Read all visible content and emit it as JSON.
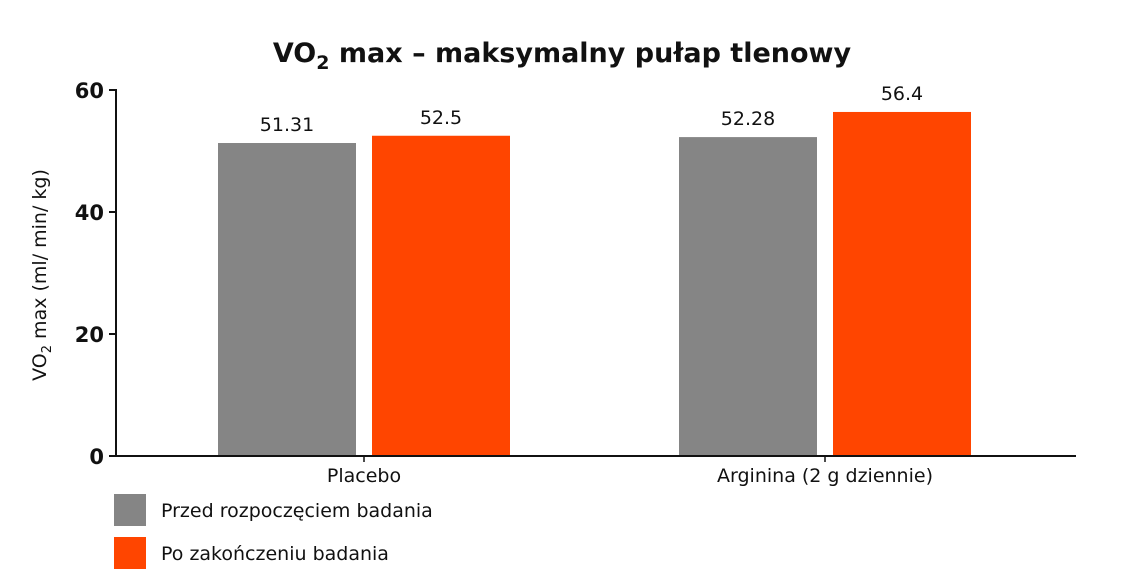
{
  "chart_data": {
    "type": "bar",
    "title_main": "VO",
    "title_sub": "2",
    "title_rest": " max – maksymalny pułap tlenowy",
    "ylabel_main": "VO",
    "ylabel_sub": "2",
    "ylabel_rest": " max (ml/ min/ kg)",
    "categories": [
      "Placebo",
      "Arginina (2 g dziennie)"
    ],
    "series": [
      {
        "name": "Przed rozpoczęciem badania",
        "color": "#858585",
        "values": [
          51.31,
          52.28
        ],
        "labels": [
          "51.31",
          "52.28"
        ]
      },
      {
        "name": "Po zakończeniu badania",
        "color": "#ff4500",
        "values": [
          52.5,
          56.4
        ],
        "labels": [
          "52.5",
          "56.4"
        ]
      }
    ],
    "ylim": [
      0,
      60
    ],
    "yticks": [
      "0",
      "20",
      "40",
      "60"
    ],
    "grid": false,
    "legend_position": "bottom-left"
  }
}
